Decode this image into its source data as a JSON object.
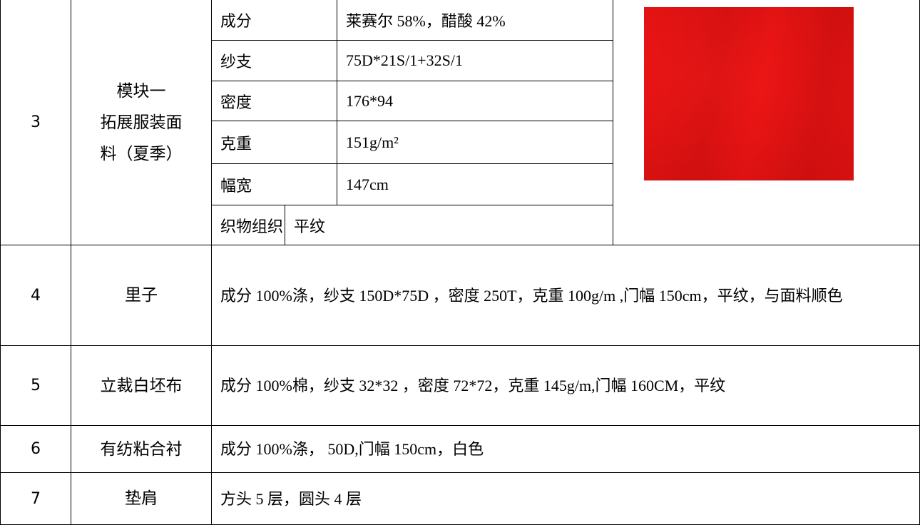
{
  "rows": [
    {
      "no": "3",
      "name": [
        "模块一",
        "拓展服装面",
        "料（夏季）"
      ],
      "specs": [
        [
          "成分",
          "莱赛尔 58%，醋酸 42%"
        ],
        [
          "纱支",
          "75D*21S/1+32S/1"
        ],
        [
          "密度",
          "176*94"
        ],
        [
          "克重",
          "151g/m²"
        ],
        [
          "幅宽",
          "147cm"
        ],
        [
          "织物组织",
          "平纹"
        ]
      ]
    },
    {
      "no": "4",
      "name": [
        "里子"
      ],
      "desc": "成分 100%涤，纱支 150D*75D ，密度 250T，克重 100g/m ,门幅 150cm，平纹，与面料顺色"
    },
    {
      "no": "5",
      "name": [
        "立裁白坯布"
      ],
      "desc": "成分 100%棉，纱支 32*32 ，密度 72*72，克重 145g/m,门幅 160CM，平纹"
    },
    {
      "no": "6",
      "name": [
        "有纺粘合衬"
      ],
      "desc": "成分 100%涤， 50D,门幅 150cm，白色"
    },
    {
      "no": "7",
      "name": [
        "垫肩"
      ],
      "desc": "方头 5 层，圆头 4 层"
    }
  ]
}
